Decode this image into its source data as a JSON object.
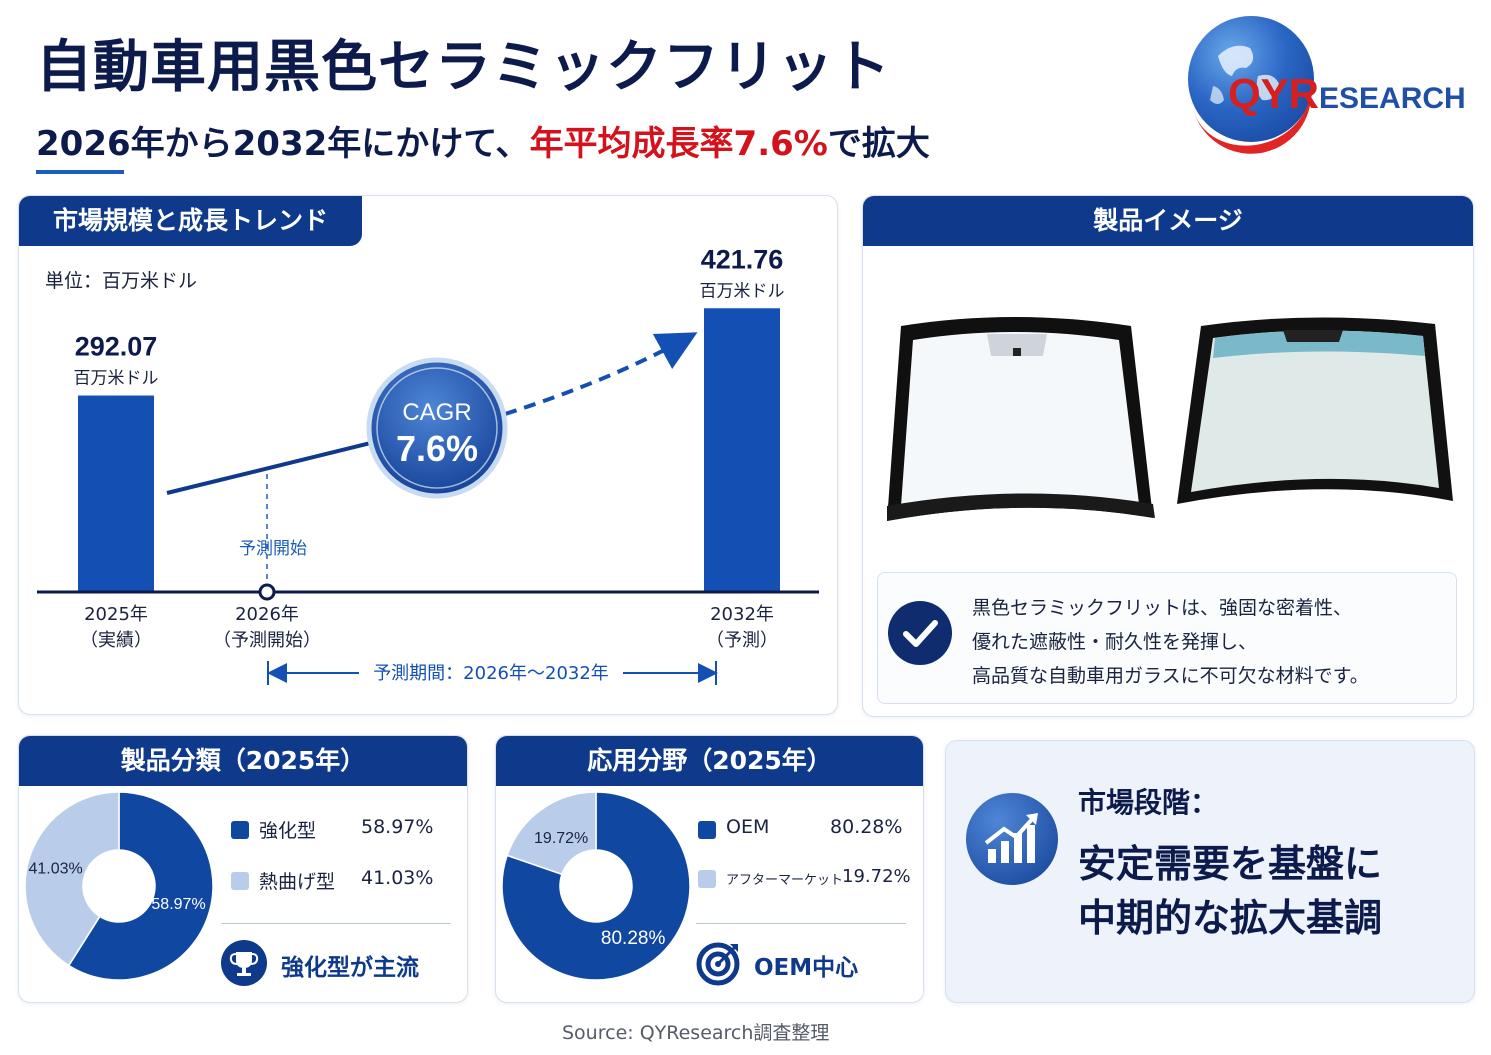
{
  "header": {
    "title": "自動車用黒色セラミックフリット",
    "subtitle_prefix": "2026年から2032年にかけて、",
    "subtitle_highlight": "年平均成長率7.6%",
    "subtitle_suffix": "で拡大"
  },
  "logo": {
    "text_qy": "QYR",
    "text_rest": "ESEARCH"
  },
  "market_panel": {
    "heading": "市場規模と成長トレンド",
    "unit_label": "単位：百万米ドル",
    "forecast_start_label": "予測開始",
    "cagr_label": "CAGR",
    "cagr_value": "7.6%",
    "forecast_period_label": "予測期間：2026年〜2032年"
  },
  "chart_data": [
    {
      "type": "bar",
      "title": "市場規模と成長トレンド",
      "unit": "単位：百万米ドル",
      "categories": [
        "2025年（実績）",
        "2026年（予測開始）",
        "2032年（予測）"
      ],
      "category_year": [
        "2025年",
        "2026年",
        "2032年"
      ],
      "category_note": [
        "（実績）",
        "（予測開始）",
        "（予測）"
      ],
      "values": [
        292.07,
        null,
        421.76
      ],
      "value_labels": [
        "292.07",
        "",
        "421.76"
      ],
      "value_unit": "百万米ドル",
      "ylim": [
        0,
        440
      ],
      "cagr": "7.6%"
    },
    {
      "type": "pie",
      "title": "製品分類（2025年）",
      "slices": [
        {
          "label": "強化型",
          "value": 58.97,
          "display": "58.97%",
          "color": "#0f47a1"
        },
        {
          "label": "熱曲げ型",
          "value": 41.03,
          "display": "41.03%",
          "color": "#b9cdea"
        }
      ]
    },
    {
      "type": "pie",
      "title": "応用分野（2025年）",
      "slices": [
        {
          "label": "OEM",
          "value": 80.28,
          "display": "80.28%",
          "color": "#0f47a1"
        },
        {
          "label": "アフターマーケット",
          "value": 19.72,
          "display": "19.72%",
          "color": "#b9cdea"
        }
      ]
    }
  ],
  "product_panel": {
    "heading": "製品イメージ",
    "description_lines": [
      "黒色セラミックフリットは、強固な密着性、",
      "優れた遮蔽性・耐久性を発揮し、",
      "高品質な自動車用ガラスに不可欠な材料です。"
    ]
  },
  "product_type_panel": {
    "heading": "製品分類（2025年）",
    "items": [
      {
        "label": "強化型",
        "value": "58.97%"
      },
      {
        "label": "熱曲げ型",
        "value": "41.03%"
      }
    ],
    "footer": "強化型が主流"
  },
  "application_panel": {
    "heading": "応用分野（2025年）",
    "items": [
      {
        "label": "OEM",
        "value": "80.28%"
      },
      {
        "label": "アフターマーケット",
        "value": "19.72%"
      }
    ],
    "footer": "OEM中心"
  },
  "stage_panel": {
    "label": "市場段階：",
    "line1": "安定需要を基盤に",
    "line2": "中期的な拡大基調"
  },
  "source": "Source: QYResearch調査整理",
  "colors": {
    "navy": "#0f3a8c",
    "bar": "#1450b4",
    "light": "#b9cdea",
    "accent_red": "#d3121b"
  }
}
